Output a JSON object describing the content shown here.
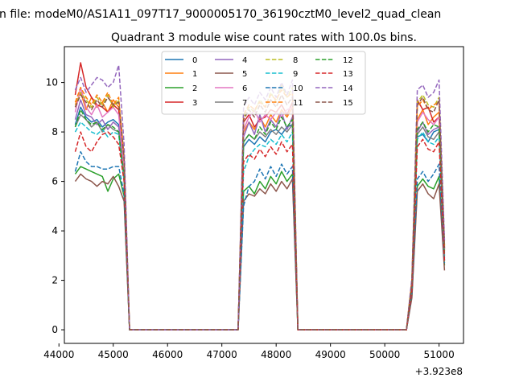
{
  "figure": {
    "suptitle": "n file: modeM0/AS1A11_097T17_9000005170_36190cztM0_level2_quad_clean",
    "title": "Quadrant 3 module wise count rates with 100.0s bins.",
    "offset_label": "+3.923e8"
  },
  "chart_data": {
    "type": "line",
    "title": "Quadrant 3 module wise count rates with 100.0s bins.",
    "x_offset": 392300000,
    "xlim": [
      44100,
      51450
    ],
    "ylim": [
      -0.55,
      11.45
    ],
    "x_ticks": [
      44000,
      45000,
      46000,
      47000,
      48000,
      49000,
      50000,
      51000
    ],
    "y_ticks": [
      0,
      2,
      4,
      6,
      8,
      10
    ],
    "grid": false,
    "legend": {
      "placement": "top-center",
      "columns": 4
    },
    "x": [
      44300,
      44400,
      44500,
      44600,
      44700,
      44800,
      44900,
      45000,
      45100,
      45200,
      45300,
      47300,
      47400,
      47500,
      47600,
      47700,
      47800,
      47900,
      48000,
      48100,
      48200,
      48300,
      48400,
      48500,
      50400,
      50500,
      50600,
      50700,
      50800,
      50900,
      51000,
      51100
    ],
    "series": [
      {
        "name": "0",
        "color": "#1f77b4",
        "dash": "solid",
        "values": [
          8.3,
          9.0,
          8.6,
          8.4,
          8.5,
          8.2,
          8.4,
          8.5,
          8.3,
          6.2,
          0,
          0,
          7.4,
          7.7,
          7.5,
          7.8,
          7.6,
          8.0,
          8.1,
          7.9,
          8.2,
          8.3,
          0,
          0,
          0,
          1.8,
          7.8,
          7.9,
          7.6,
          8.0,
          8.1,
          3.0
        ]
      },
      {
        "name": "1",
        "color": "#ff7f0e",
        "dash": "solid",
        "values": [
          9.1,
          9.6,
          8.9,
          9.4,
          9.0,
          9.2,
          8.8,
          9.3,
          9.0,
          6.8,
          0,
          0,
          8.0,
          8.4,
          8.1,
          8.6,
          8.2,
          8.7,
          8.4,
          8.9,
          8.6,
          9.0,
          0,
          0,
          0,
          1.9,
          8.5,
          8.9,
          8.3,
          8.6,
          8.8,
          3.2
        ]
      },
      {
        "name": "2",
        "color": "#2ca02c",
        "dash": "solid",
        "values": [
          6.3,
          6.6,
          6.5,
          6.4,
          6.3,
          6.2,
          5.6,
          6.1,
          6.3,
          5.4,
          0,
          0,
          5.6,
          5.8,
          5.5,
          6.0,
          5.7,
          6.2,
          5.9,
          6.4,
          6.0,
          6.3,
          0,
          0,
          0,
          1.4,
          5.8,
          6.1,
          5.8,
          5.7,
          6.2,
          2.6
        ]
      },
      {
        "name": "3",
        "color": "#d62728",
        "dash": "solid",
        "values": [
          9.5,
          10.8,
          9.8,
          9.4,
          9.1,
          9.0,
          8.8,
          9.1,
          8.9,
          6.6,
          0,
          0,
          8.4,
          8.7,
          8.2,
          8.5,
          8.6,
          8.9,
          8.8,
          9.1,
          8.7,
          9.2,
          0,
          0,
          0,
          2.0,
          9.3,
          8.9,
          9.0,
          8.4,
          8.6,
          3.3
        ]
      },
      {
        "name": "4",
        "color": "#9467bd",
        "dash": "solid",
        "values": [
          8.5,
          9.3,
          8.7,
          8.6,
          8.3,
          8.5,
          8.1,
          8.4,
          8.2,
          6.3,
          0,
          0,
          7.8,
          8.4,
          7.9,
          8.7,
          8.0,
          8.5,
          8.2,
          8.8,
          8.1,
          8.6,
          0,
          0,
          0,
          1.8,
          8.0,
          8.4,
          7.9,
          8.1,
          8.2,
          3.1
        ]
      },
      {
        "name": "5",
        "color": "#8c564b",
        "dash": "solid",
        "values": [
          6.0,
          6.3,
          6.1,
          6.0,
          5.8,
          6.0,
          5.9,
          6.2,
          5.8,
          5.2,
          0,
          0,
          5.2,
          5.5,
          5.4,
          5.7,
          5.5,
          5.9,
          5.6,
          6.0,
          5.7,
          6.1,
          0,
          0,
          0,
          1.3,
          5.6,
          5.9,
          5.5,
          5.3,
          5.9,
          2.4
        ]
      },
      {
        "name": "6",
        "color": "#e377c2",
        "dash": "solid",
        "values": [
          8.8,
          9.8,
          9.0,
          8.7,
          9.1,
          8.6,
          8.8,
          9.0,
          8.7,
          6.5,
          0,
          0,
          8.1,
          8.6,
          8.9,
          8.4,
          8.7,
          8.5,
          8.8,
          8.6,
          8.9,
          9.0,
          0,
          0,
          0,
          1.9,
          8.4,
          8.8,
          8.5,
          8.3,
          8.6,
          3.2
        ]
      },
      {
        "name": "7",
        "color": "#7f7f7f",
        "dash": "solid",
        "values": [
          8.2,
          8.7,
          8.5,
          8.2,
          8.4,
          8.0,
          8.3,
          8.1,
          8.0,
          6.1,
          0,
          0,
          7.6,
          7.9,
          7.7,
          8.0,
          7.8,
          8.1,
          7.9,
          8.2,
          8.0,
          8.3,
          0,
          0,
          0,
          1.7,
          7.9,
          8.2,
          7.8,
          7.7,
          8.0,
          2.9
        ]
      },
      {
        "name": "8",
        "color": "#bcbd22",
        "dash": "dashed",
        "values": [
          9.0,
          9.6,
          9.3,
          9.0,
          9.4,
          9.1,
          9.5,
          9.0,
          9.3,
          7.0,
          0,
          0,
          8.6,
          9.0,
          8.8,
          9.3,
          9.0,
          9.6,
          9.2,
          9.9,
          9.4,
          9.8,
          0,
          0,
          0,
          2.0,
          9.2,
          9.5,
          9.1,
          9.0,
          9.4,
          3.4
        ]
      },
      {
        "name": "9",
        "color": "#17becf",
        "dash": "dashed",
        "values": [
          8.0,
          8.4,
          8.2,
          8.0,
          7.9,
          8.1,
          7.8,
          8.0,
          7.9,
          6.0,
          0,
          0,
          6.4,
          7.0,
          7.3,
          7.5,
          7.4,
          7.7,
          7.5,
          7.9,
          7.6,
          8.0,
          0,
          0,
          0,
          1.6,
          7.7,
          8.0,
          7.6,
          7.5,
          7.8,
          2.8
        ]
      },
      {
        "name": "10",
        "color": "#1f77b4",
        "dash": "dashed",
        "values": [
          6.4,
          7.2,
          6.8,
          6.6,
          6.6,
          6.5,
          6.5,
          6.6,
          6.6,
          5.5,
          0,
          0,
          5.0,
          5.8,
          6.0,
          6.5,
          6.1,
          6.6,
          6.2,
          6.7,
          6.3,
          6.6,
          0,
          0,
          0,
          1.5,
          6.1,
          6.4,
          6.0,
          6.3,
          6.7,
          2.7
        ]
      },
      {
        "name": "11",
        "color": "#ff7f0e",
        "dash": "dashed",
        "values": [
          9.2,
          9.8,
          9.4,
          9.1,
          9.5,
          9.2,
          9.6,
          9.1,
          9.4,
          7.0,
          0,
          0,
          8.7,
          9.1,
          8.9,
          9.2,
          9.0,
          9.5,
          9.3,
          9.7,
          9.4,
          9.6,
          0,
          0,
          0,
          2.0,
          9.0,
          9.3,
          8.9,
          9.1,
          9.2,
          3.4
        ]
      },
      {
        "name": "12",
        "color": "#2ca02c",
        "dash": "dashed",
        "values": [
          8.2,
          8.9,
          8.5,
          8.3,
          8.4,
          8.1,
          8.3,
          8.2,
          8.0,
          6.2,
          0,
          0,
          7.6,
          7.9,
          7.7,
          8.2,
          7.9,
          8.4,
          8.1,
          8.6,
          8.2,
          8.5,
          0,
          0,
          0,
          1.8,
          8.1,
          8.4,
          8.0,
          8.3,
          8.2,
          3.0
        ]
      },
      {
        "name": "13",
        "color": "#d62728",
        "dash": "dashed",
        "values": [
          7.2,
          8.0,
          7.4,
          7.2,
          7.6,
          7.9,
          8.0,
          7.8,
          7.5,
          6.0,
          0,
          0,
          6.8,
          7.1,
          6.9,
          7.3,
          7.0,
          7.4,
          7.1,
          7.6,
          7.2,
          7.5,
          0,
          0,
          0,
          1.6,
          7.4,
          7.7,
          7.3,
          7.2,
          7.6,
          2.8
        ]
      },
      {
        "name": "14",
        "color": "#9467bd",
        "dash": "dashed",
        "values": [
          9.7,
          10.2,
          9.6,
          9.9,
          10.2,
          10.1,
          9.8,
          10.0,
          10.7,
          7.5,
          0,
          0,
          9.0,
          9.4,
          9.1,
          9.6,
          9.3,
          9.8,
          9.4,
          10.0,
          9.5,
          10.1,
          0,
          0,
          0,
          2.1,
          9.7,
          9.9,
          9.4,
          9.6,
          10.1,
          3.6
        ]
      },
      {
        "name": "15",
        "color": "#8c564b",
        "dash": "dashed",
        "values": [
          9.0,
          9.5,
          9.2,
          8.9,
          9.3,
          9.0,
          9.4,
          9.1,
          9.2,
          6.9,
          0,
          0,
          8.5,
          8.9,
          8.6,
          9.1,
          8.8,
          9.3,
          9.0,
          9.5,
          9.1,
          9.4,
          0,
          0,
          0,
          1.9,
          9.1,
          9.4,
          8.9,
          8.8,
          9.3,
          3.3
        ]
      }
    ]
  }
}
